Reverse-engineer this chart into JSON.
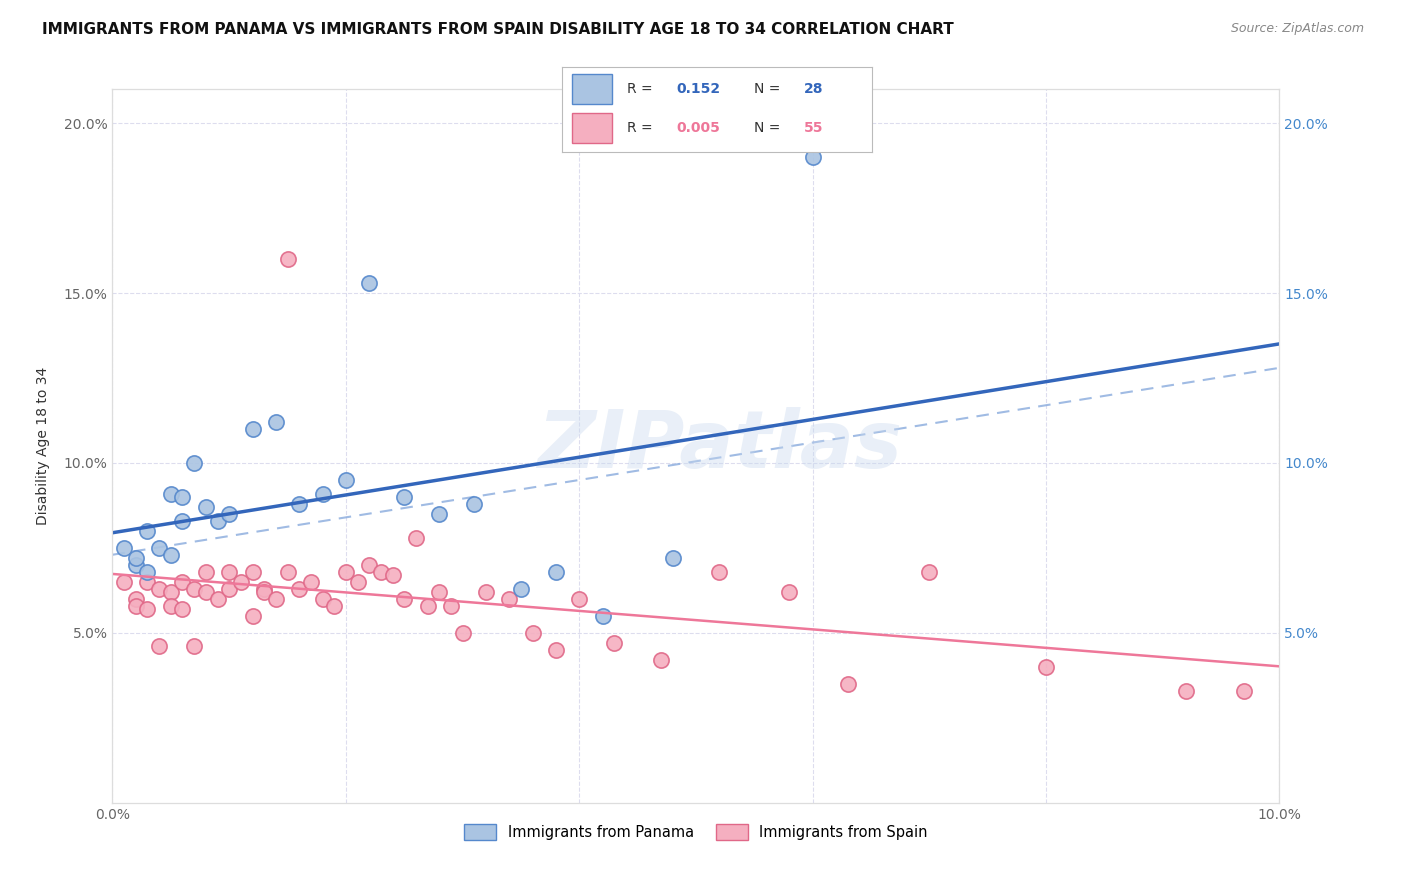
{
  "title": "IMMIGRANTS FROM PANAMA VS IMMIGRANTS FROM SPAIN DISABILITY AGE 18 TO 34 CORRELATION CHART",
  "source": "Source: ZipAtlas.com",
  "ylabel": "Disability Age 18 to 34",
  "watermark": "ZIPatlas",
  "legend_panama_R": "0.152",
  "legend_panama_N": "28",
  "legend_spain_R": "0.005",
  "legend_spain_N": "55",
  "legend_panama_label": "Immigrants from Panama",
  "legend_spain_label": "Immigrants from Spain",
  "xlim": [
    0.0,
    0.1
  ],
  "ylim": [
    0.0,
    0.21
  ],
  "color_panama": "#aac4e2",
  "color_spain": "#f5afc0",
  "edge_panama": "#5588cc",
  "edge_spain": "#e06888",
  "line_panama": "#3366bb",
  "line_spain": "#ee7799",
  "line_dashed": "#88aadd",
  "background_color": "#ffffff",
  "grid_color": "#ddddee",
  "title_fontsize": 11,
  "marker_size": 120,
  "panama_x": [
    0.001,
    0.002,
    0.002,
    0.003,
    0.003,
    0.004,
    0.005,
    0.005,
    0.006,
    0.006,
    0.007,
    0.008,
    0.009,
    0.01,
    0.012,
    0.014,
    0.016,
    0.018,
    0.02,
    0.022,
    0.025,
    0.028,
    0.031,
    0.035,
    0.038,
    0.042,
    0.048,
    0.06
  ],
  "panama_y": [
    0.075,
    0.07,
    0.072,
    0.068,
    0.08,
    0.075,
    0.073,
    0.091,
    0.09,
    0.083,
    0.1,
    0.087,
    0.083,
    0.085,
    0.11,
    0.112,
    0.088,
    0.091,
    0.095,
    0.153,
    0.09,
    0.085,
    0.088,
    0.063,
    0.068,
    0.055,
    0.072,
    0.19
  ],
  "spain_x": [
    0.001,
    0.002,
    0.002,
    0.003,
    0.003,
    0.004,
    0.004,
    0.005,
    0.005,
    0.006,
    0.006,
    0.007,
    0.007,
    0.008,
    0.008,
    0.009,
    0.01,
    0.01,
    0.011,
    0.012,
    0.012,
    0.013,
    0.013,
    0.014,
    0.015,
    0.015,
    0.016,
    0.017,
    0.018,
    0.019,
    0.02,
    0.021,
    0.022,
    0.023,
    0.024,
    0.025,
    0.026,
    0.027,
    0.028,
    0.029,
    0.03,
    0.032,
    0.034,
    0.036,
    0.038,
    0.04,
    0.043,
    0.047,
    0.052,
    0.058,
    0.063,
    0.07,
    0.08,
    0.092,
    0.097
  ],
  "spain_y": [
    0.065,
    0.06,
    0.058,
    0.065,
    0.057,
    0.063,
    0.046,
    0.062,
    0.058,
    0.065,
    0.057,
    0.063,
    0.046,
    0.068,
    0.062,
    0.06,
    0.063,
    0.068,
    0.065,
    0.055,
    0.068,
    0.063,
    0.062,
    0.06,
    0.068,
    0.16,
    0.063,
    0.065,
    0.06,
    0.058,
    0.068,
    0.065,
    0.07,
    0.068,
    0.067,
    0.06,
    0.078,
    0.058,
    0.062,
    0.058,
    0.05,
    0.062,
    0.06,
    0.05,
    0.045,
    0.06,
    0.047,
    0.042,
    0.068,
    0.062,
    0.035,
    0.068,
    0.04,
    0.033,
    0.033
  ]
}
